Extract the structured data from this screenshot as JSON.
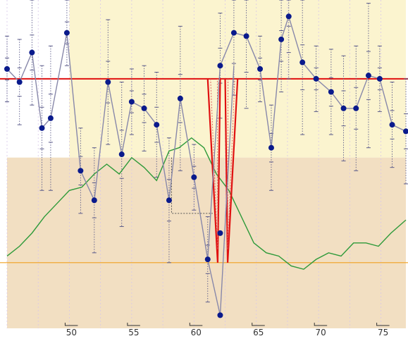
{
  "chart_data": {
    "type": "line",
    "title": "",
    "xlabel": "",
    "ylabel": "",
    "xlim": [
      45,
      77
    ],
    "ylim": [
      0,
      100
    ],
    "x_ticks": [
      {
        "value": 50,
        "label": "50"
      },
      {
        "value": 55,
        "label": "55"
      },
      {
        "value": 60,
        "label": "60"
      },
      {
        "value": 65,
        "label": "65"
      },
      {
        "value": 70,
        "label": "70"
      },
      {
        "value": 75,
        "label": "75"
      }
    ],
    "grid": "vertical dashed lines at ticks",
    "background_zones": [
      {
        "name": "upper",
        "x": [
          45,
          77
        ],
        "y": [
          52,
          100
        ],
        "color": "#fbf4cf"
      },
      {
        "name": "upper-left",
        "x": [
          45,
          50
        ],
        "y": [
          52,
          100
        ],
        "color": "#ffffff"
      },
      {
        "name": "lower",
        "x": [
          45,
          77
        ],
        "y": [
          0,
          52
        ],
        "color": "#f2dfc2"
      }
    ],
    "colors": {
      "main_series": "#8888aa",
      "markers": "#0a1a8c",
      "error_bars": "#5a5a8a",
      "green_series": "#2e9a3a",
      "red_reference": "#e01010",
      "orange_reference": "#f0a020"
    },
    "series": [
      {
        "type": "line-with-markers",
        "x": [
          45,
          46,
          47,
          47.8,
          48.5,
          49.8,
          50.9,
          52,
          53.1,
          54.2,
          55,
          56,
          57,
          58,
          58.9,
          60,
          61.1,
          62.1,
          63.2,
          64.2,
          65.3,
          66.2,
          67,
          67.6,
          68.7,
          69.8,
          71,
          72,
          73,
          74,
          74.9,
          75.9,
          77
        ],
        "y": [
          79,
          75,
          84,
          61,
          64,
          90,
          48,
          39,
          75,
          53,
          69,
          67,
          62,
          39,
          70,
          46,
          21,
          80,
          90,
          89,
          79,
          55,
          88,
          95,
          81,
          76,
          72,
          67,
          67,
          77,
          76,
          62,
          60
        ],
        "marker_y_extra": [
          {
            "x": 62.1,
            "y": 4
          },
          {
            "x": 62.1,
            "y": 29
          }
        ]
      },
      {
        "type": "line",
        "x": [
          45,
          46,
          47,
          48,
          49,
          50,
          51,
          52,
          53,
          54,
          55,
          56,
          57,
          58,
          58.8,
          59.8,
          60.8,
          61.8,
          62.8,
          63.8,
          64.8,
          65.8,
          66.8,
          67.8,
          68.8,
          69.8,
          70.8,
          71.8,
          72.8,
          73.8,
          74.8,
          75.8,
          77
        ],
        "y": [
          22,
          25,
          29,
          34,
          38,
          42,
          43,
          47,
          50,
          47,
          52,
          49,
          45,
          54,
          55,
          58,
          55,
          47,
          42,
          34,
          26,
          23,
          22,
          19,
          18,
          21,
          23,
          22,
          26,
          26,
          25,
          29,
          33
        ]
      }
    ],
    "reference_lines": [
      {
        "name": "red-horizontal",
        "y": 76
      },
      {
        "name": "orange-horizontal",
        "y": 20
      }
    ],
    "annotation_funnels": [
      {
        "x_center": 61.9,
        "x_top_left": 61.1,
        "x_top_right": 62.1,
        "y_top": 76,
        "y_bottom": 20
      },
      {
        "x_center": 62.7,
        "x_top_left": 62.5,
        "x_top_right": 63.5,
        "y_top": 76,
        "y_bottom": 20
      }
    ]
  }
}
